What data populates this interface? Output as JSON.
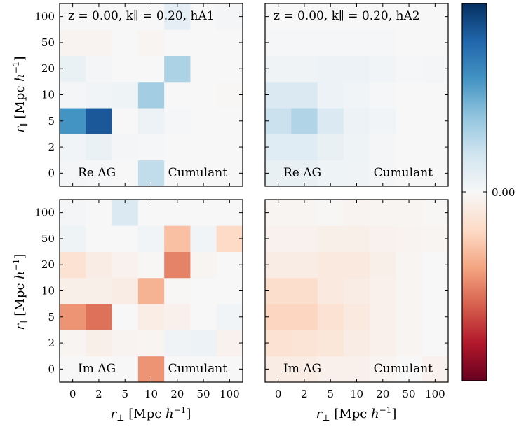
{
  "chart_data": {
    "type": "heatmap",
    "x_categories": [
      "0",
      "2",
      "5",
      "10",
      "20",
      "50",
      "100"
    ],
    "y_categories": [
      "0",
      "2",
      "5",
      "10",
      "20",
      "50",
      "100"
    ],
    "xlabel_text": "r⊥ [Mpc h−1]",
    "ylabel_text": "r∥ [Mpc h−1]",
    "colorbar": {
      "colormap": "RdBu",
      "center": 0.0,
      "tick_label": "0.00"
    },
    "panels": [
      {
        "id": "re-hA1",
        "title": "z = 0.00,  k∥ = 0.20, hA1",
        "part": "Re ΔG",
        "method": "Cumulant",
        "values": [
          [
            0.02,
            0.01,
            0.0,
            0.25,
            0.0,
            0.0,
            0.0
          ],
          [
            0.03,
            0.07,
            0.02,
            0.01,
            0.0,
            0.0,
            0.0
          ],
          [
            0.6,
            0.85,
            0.0,
            0.06,
            0.01,
            0.0,
            0.0
          ],
          [
            0.02,
            0.03,
            0.05,
            0.35,
            0.0,
            0.0,
            -0.01
          ],
          [
            0.07,
            0.02,
            0.0,
            0.0,
            0.32,
            0.0,
            0.0
          ],
          [
            -0.03,
            -0.03,
            0.0,
            -0.02,
            0.0,
            0.0,
            0.0
          ],
          [
            0.0,
            0.0,
            0.0,
            0.0,
            0.1,
            0.0,
            0.02
          ]
        ]
      },
      {
        "id": "re-hA2",
        "title": "z = 0.00,  k∥ = 0.20, hA2",
        "part": "Re ΔG",
        "method": "Cumulant",
        "values": [
          [
            0.08,
            0.08,
            0.05,
            0.04,
            0.02,
            0.0,
            0.0
          ],
          [
            0.12,
            0.12,
            0.08,
            0.05,
            0.02,
            0.0,
            0.0
          ],
          [
            0.22,
            0.3,
            0.15,
            0.06,
            0.03,
            0.0,
            0.0
          ],
          [
            0.15,
            0.15,
            0.06,
            0.03,
            0.01,
            0.0,
            0.0
          ],
          [
            0.04,
            0.04,
            0.06,
            0.06,
            0.03,
            0.01,
            0.02
          ],
          [
            0.01,
            0.01,
            0.01,
            0.01,
            0.01,
            0.0,
            0.0
          ],
          [
            0.0,
            0.0,
            0.0,
            0.0,
            0.0,
            0.0,
            0.0
          ]
        ]
      },
      {
        "id": "im-hA1",
        "title": "",
        "part": "Im ΔG",
        "method": "Cumulant",
        "values": [
          [
            0.0,
            0.0,
            0.0,
            -0.45,
            0.0,
            0.0,
            0.0
          ],
          [
            -0.02,
            -0.06,
            -0.03,
            -0.02,
            0.04,
            0.06,
            -0.04
          ],
          [
            -0.45,
            -0.55,
            0.0,
            -0.07,
            -0.05,
            0.0,
            0.03
          ],
          [
            -0.06,
            -0.06,
            -0.08,
            -0.35,
            -0.01,
            0.0,
            0.0
          ],
          [
            -0.15,
            -0.08,
            -0.04,
            -0.01,
            -0.5,
            -0.02,
            0.0
          ],
          [
            0.05,
            0.0,
            0.0,
            0.03,
            -0.3,
            0.03,
            -0.2
          ],
          [
            0.02,
            0.0,
            0.15,
            0.0,
            0.0,
            0.0,
            0.0
          ]
        ]
      },
      {
        "id": "im-hA2",
        "title": "",
        "part": "Im ΔG",
        "method": "Cumulant",
        "values": [
          [
            -0.08,
            -0.08,
            -0.05,
            -0.05,
            -0.02,
            0.0,
            -0.04
          ],
          [
            -0.15,
            -0.14,
            -0.12,
            -0.08,
            -0.05,
            -0.02,
            0.0
          ],
          [
            -0.22,
            -0.22,
            -0.15,
            -0.1,
            -0.05,
            -0.02,
            0.0
          ],
          [
            -0.18,
            -0.18,
            -0.1,
            -0.08,
            -0.05,
            -0.02,
            0.0
          ],
          [
            -0.08,
            -0.08,
            -0.1,
            -0.1,
            -0.06,
            -0.02,
            0.0
          ],
          [
            -0.04,
            -0.04,
            -0.06,
            -0.06,
            -0.04,
            -0.03,
            -0.02
          ],
          [
            -0.02,
            -0.02,
            -0.01,
            -0.03,
            -0.02,
            -0.02,
            -0.01
          ]
        ]
      }
    ]
  }
}
